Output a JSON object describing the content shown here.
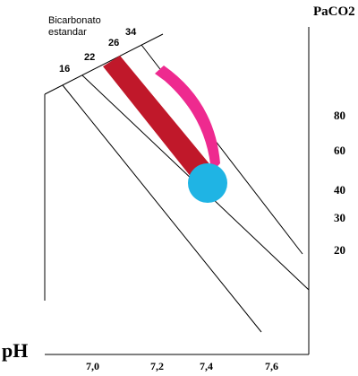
{
  "nomogram": {
    "bicarbonate_label_line1": "Bicarbonato",
    "bicarbonate_label_line2": "estandar",
    "bicarbonate_ticks": [
      "16",
      "22",
      "26",
      "34"
    ],
    "paco2_title": "PaCO2",
    "paco2_ticks": [
      "80",
      "60",
      "40",
      "30",
      "20"
    ],
    "ph_title": "pH",
    "ph_ticks": [
      "7,0",
      "7,2",
      "7,4",
      "7,6"
    ]
  },
  "colors": {
    "axis": "#000000",
    "dark_red_band": "#c0182a",
    "pink_band": "#ee2a8f",
    "blue_ellipse": "#1fb4e4"
  }
}
